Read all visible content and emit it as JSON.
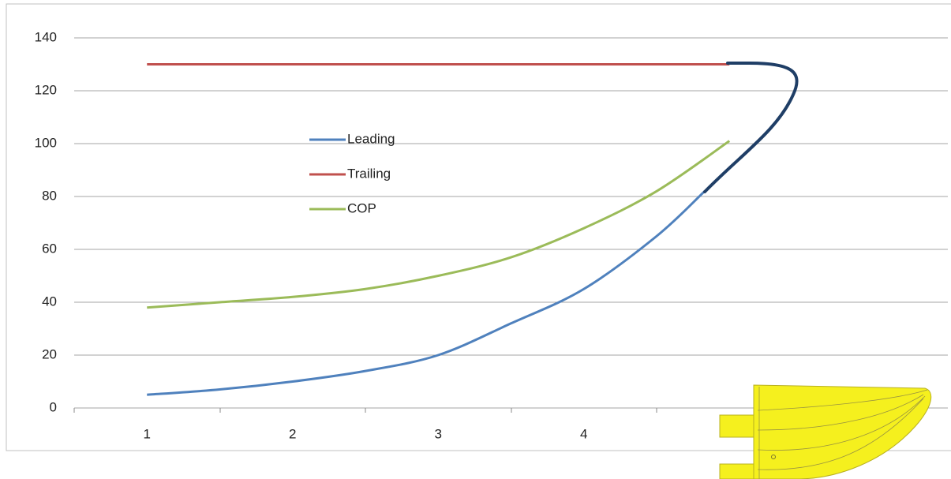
{
  "chart_data": {
    "type": "line",
    "series": [
      {
        "name": "Leading",
        "color": "#4f81bd",
        "x": [
          1,
          1.5,
          2,
          2.5,
          3,
          3.5,
          4,
          4.5,
          4.83
        ],
        "values": [
          5,
          7,
          10,
          14,
          20,
          32,
          45,
          65,
          82
        ]
      },
      {
        "name": "Trailing",
        "color": "#c0504d",
        "x": [
          1,
          5
        ],
        "values": [
          130,
          130
        ]
      },
      {
        "name": "COP",
        "color": "#9bbb59",
        "x": [
          1,
          1.5,
          2,
          2.5,
          3,
          3.5,
          4,
          4.5,
          5
        ],
        "values": [
          38,
          40,
          42,
          45,
          50,
          57,
          68,
          82,
          101
        ]
      }
    ],
    "xlim": [
      0.5,
      6.5
    ],
    "xticks": [
      1,
      2,
      3,
      4
    ],
    "ylim": [
      0,
      140
    ],
    "yticks": [
      0,
      20,
      40,
      60,
      80,
      100,
      120,
      140
    ],
    "grid": true
  }
}
